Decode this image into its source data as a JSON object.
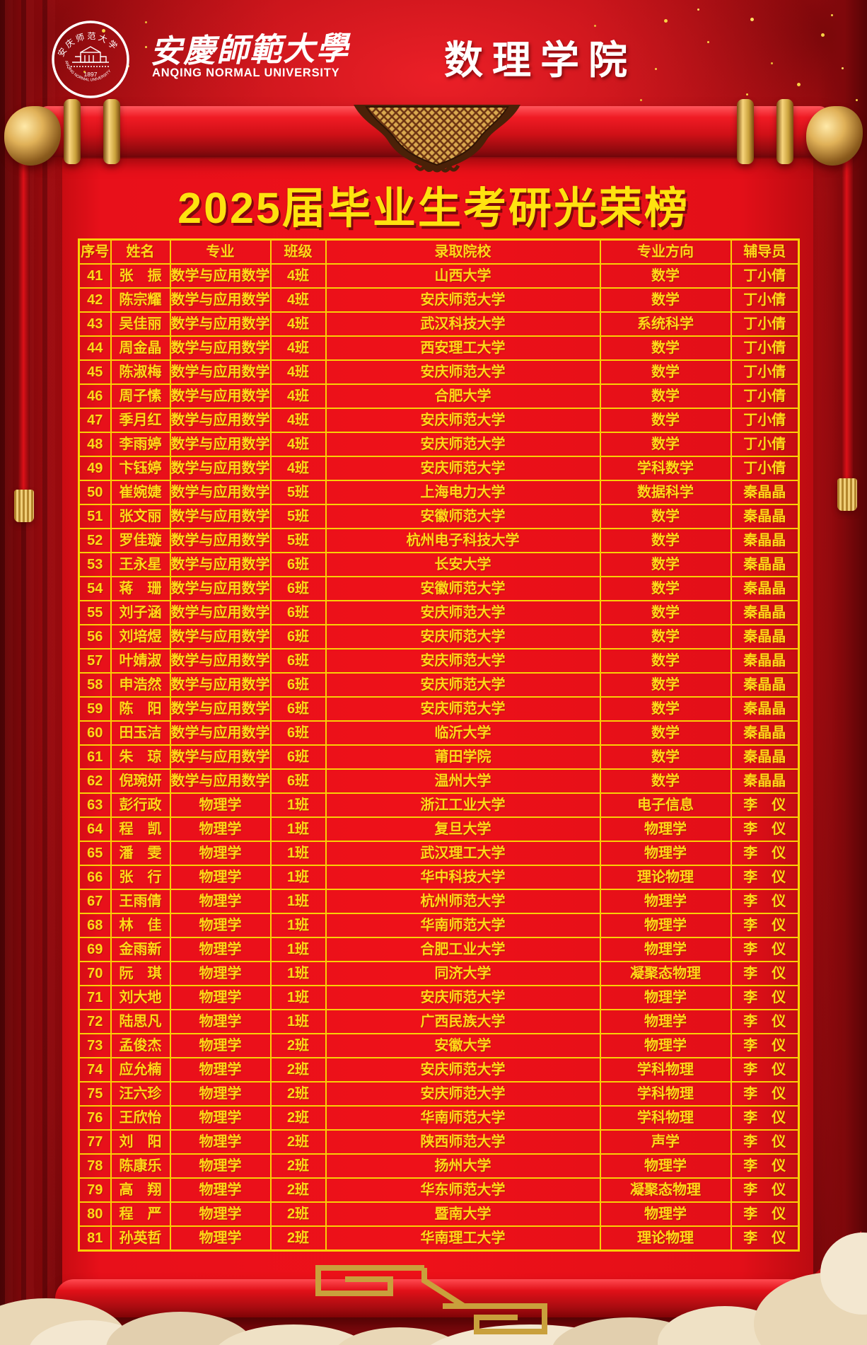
{
  "header": {
    "logo": {
      "top_text": "安庆师范大学",
      "bottom_text": "ANQING NORMAL UNIVERSITY",
      "year": "1897"
    },
    "university_cn": "安慶師範大學",
    "university_en": "ANQING NORMAL UNIVERSITY",
    "college": "数理学院"
  },
  "title": "2025届毕业生考研光荣榜",
  "table": {
    "columns": [
      "序号",
      "姓名",
      "专业",
      "班级",
      "录取院校",
      "专业方向",
      "辅导员"
    ],
    "rows": [
      [
        "41",
        "张　振",
        "数学与应用数学",
        "4班",
        "山西大学",
        "数学",
        "丁小倩"
      ],
      [
        "42",
        "陈宗耀",
        "数学与应用数学",
        "4班",
        "安庆师范大学",
        "数学",
        "丁小倩"
      ],
      [
        "43",
        "吴佳丽",
        "数学与应用数学",
        "4班",
        "武汉科技大学",
        "系统科学",
        "丁小倩"
      ],
      [
        "44",
        "周金晶",
        "数学与应用数学",
        "4班",
        "西安理工大学",
        "数学",
        "丁小倩"
      ],
      [
        "45",
        "陈淑梅",
        "数学与应用数学",
        "4班",
        "安庆师范大学",
        "数学",
        "丁小倩"
      ],
      [
        "46",
        "周子愫",
        "数学与应用数学",
        "4班",
        "合肥大学",
        "数学",
        "丁小倩"
      ],
      [
        "47",
        "季月红",
        "数学与应用数学",
        "4班",
        "安庆师范大学",
        "数学",
        "丁小倩"
      ],
      [
        "48",
        "李雨婷",
        "数学与应用数学",
        "4班",
        "安庆师范大学",
        "数学",
        "丁小倩"
      ],
      [
        "49",
        "卞钰婷",
        "数学与应用数学",
        "4班",
        "安庆师范大学",
        "学科数学",
        "丁小倩"
      ],
      [
        "50",
        "崔婉婕",
        "数学与应用数学",
        "5班",
        "上海电力大学",
        "数据科学",
        "秦晶晶"
      ],
      [
        "51",
        "张文丽",
        "数学与应用数学",
        "5班",
        "安徽师范大学",
        "数学",
        "秦晶晶"
      ],
      [
        "52",
        "罗佳璇",
        "数学与应用数学",
        "5班",
        "杭州电子科技大学",
        "数学",
        "秦晶晶"
      ],
      [
        "53",
        "王永星",
        "数学与应用数学",
        "6班",
        "长安大学",
        "数学",
        "秦晶晶"
      ],
      [
        "54",
        "蒋　珊",
        "数学与应用数学",
        "6班",
        "安徽师范大学",
        "数学",
        "秦晶晶"
      ],
      [
        "55",
        "刘子涵",
        "数学与应用数学",
        "6班",
        "安庆师范大学",
        "数学",
        "秦晶晶"
      ],
      [
        "56",
        "刘培煜",
        "数学与应用数学",
        "6班",
        "安庆师范大学",
        "数学",
        "秦晶晶"
      ],
      [
        "57",
        "叶婧淑",
        "数学与应用数学",
        "6班",
        "安庆师范大学",
        "数学",
        "秦晶晶"
      ],
      [
        "58",
        "申浩然",
        "数学与应用数学",
        "6班",
        "安庆师范大学",
        "数学",
        "秦晶晶"
      ],
      [
        "59",
        "陈　阳",
        "数学与应用数学",
        "6班",
        "安庆师范大学",
        "数学",
        "秦晶晶"
      ],
      [
        "60",
        "田玉洁",
        "数学与应用数学",
        "6班",
        "临沂大学",
        "数学",
        "秦晶晶"
      ],
      [
        "61",
        "朱　琼",
        "数学与应用数学",
        "6班",
        "莆田学院",
        "数学",
        "秦晶晶"
      ],
      [
        "62",
        "倪琬妍",
        "数学与应用数学",
        "6班",
        "温州大学",
        "数学",
        "秦晶晶"
      ],
      [
        "63",
        "彭行政",
        "物理学",
        "1班",
        "浙江工业大学",
        "电子信息",
        "李　仪"
      ],
      [
        "64",
        "程　凯",
        "物理学",
        "1班",
        "复旦大学",
        "物理学",
        "李　仪"
      ],
      [
        "65",
        "潘　雯",
        "物理学",
        "1班",
        "武汉理工大学",
        "物理学",
        "李　仪"
      ],
      [
        "66",
        "张　行",
        "物理学",
        "1班",
        "华中科技大学",
        "理论物理",
        "李　仪"
      ],
      [
        "67",
        "王雨倩",
        "物理学",
        "1班",
        "杭州师范大学",
        "物理学",
        "李　仪"
      ],
      [
        "68",
        "林　佳",
        "物理学",
        "1班",
        "华南师范大学",
        "物理学",
        "李　仪"
      ],
      [
        "69",
        "金雨新",
        "物理学",
        "1班",
        "合肥工业大学",
        "物理学",
        "李　仪"
      ],
      [
        "70",
        "阮　琪",
        "物理学",
        "1班",
        "同济大学",
        "凝聚态物理",
        "李　仪"
      ],
      [
        "71",
        "刘大地",
        "物理学",
        "1班",
        "安庆师范大学",
        "物理学",
        "李　仪"
      ],
      [
        "72",
        "陆思凡",
        "物理学",
        "1班",
        "广西民族大学",
        "物理学",
        "李　仪"
      ],
      [
        "73",
        "孟俊杰",
        "物理学",
        "2班",
        "安徽大学",
        "物理学",
        "李　仪"
      ],
      [
        "74",
        "应允楠",
        "物理学",
        "2班",
        "安庆师范大学",
        "学科物理",
        "李　仪"
      ],
      [
        "75",
        "汪六珍",
        "物理学",
        "2班",
        "安庆师范大学",
        "学科物理",
        "李　仪"
      ],
      [
        "76",
        "王欣怡",
        "物理学",
        "2班",
        "华南师范大学",
        "学科物理",
        "李　仪"
      ],
      [
        "77",
        "刘　阳",
        "物理学",
        "2班",
        "陕西师范大学",
        "声学",
        "李　仪"
      ],
      [
        "78",
        "陈康乐",
        "物理学",
        "2班",
        "扬州大学",
        "物理学",
        "李　仪"
      ],
      [
        "79",
        "高　翔",
        "物理学",
        "2班",
        "华东师范大学",
        "凝聚态物理",
        "李　仪"
      ],
      [
        "80",
        "程　严",
        "物理学",
        "2班",
        "暨南大学",
        "物理学",
        "李　仪"
      ],
      [
        "81",
        "孙英哲",
        "物理学",
        "2班",
        "华南理工大学",
        "理论物理",
        "李　仪"
      ]
    ]
  },
  "colors": {
    "paper_red": "#e8101a",
    "border_gold": "#f9cf06",
    "cell_text_yellow": "#ffd818",
    "title_yellow": "#ffe20f",
    "curtain_red": "#a80d12",
    "cloud_cream": "#ecdcbd"
  }
}
